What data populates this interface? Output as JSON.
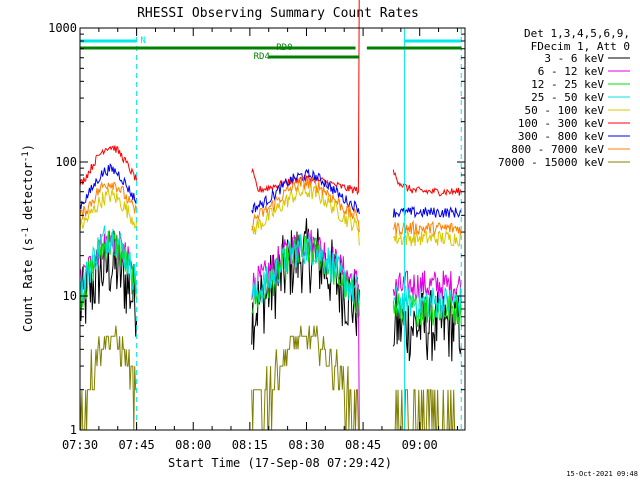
{
  "chart_data": {
    "type": "line",
    "title": "RHESSI Observing Summary Count Rates",
    "xlabel": "Start Time (17-Sep-08 07:29:42)",
    "ylabel_parts": {
      "pre": "Count Rate (s",
      "sup1": "-1",
      "mid": " detector",
      "sup2": "-1",
      "post": ")"
    },
    "x_range_min": [
      0,
      102
    ],
    "x_ticks": [
      {
        "t": 0,
        "label": "07:30"
      },
      {
        "t": 15,
        "label": "07:45"
      },
      {
        "t": 30,
        "label": "08:00"
      },
      {
        "t": 45,
        "label": "08:15"
      },
      {
        "t": 60,
        "label": "08:30"
      },
      {
        "t": 75,
        "label": "08:45"
      },
      {
        "t": 90,
        "label": "09:00"
      }
    ],
    "y_scale": "log",
    "ylim": [
      1,
      1000
    ],
    "y_ticks": [
      {
        "v": 1,
        "label": "1"
      },
      {
        "v": 10,
        "label": "10"
      },
      {
        "v": 100,
        "label": "100"
      },
      {
        "v": 1000,
        "label": "1000"
      }
    ],
    "legend": {
      "header": [
        "Det 1,3,4,5,6,9,",
        "FDecim 1, Att 0"
      ],
      "position": "right"
    },
    "series": [
      {
        "name": "3 - 6 keV",
        "color": "#000000",
        "peak1": 17,
        "trough": 7,
        "peak2": 20,
        "tail": 6,
        "step": 6,
        "noise": 0.28
      },
      {
        "name": "6 - 12 keV",
        "color": "#e000e0",
        "peak1": 26,
        "trough": 11,
        "peak2": 25,
        "tail": 12,
        "step": 11,
        "noise": 0.12
      },
      {
        "name": "12 - 25 keV",
        "color": "#00dd00",
        "peak1": 25,
        "trough": 8,
        "peak2": 22,
        "tail": 8,
        "step": 8,
        "noise": 0.13
      },
      {
        "name": "25 - 50 keV",
        "color": "#00e0e0",
        "peak1": 28,
        "trough": 9,
        "peak2": 23,
        "tail": 9,
        "step": 9,
        "noise": 0.13
      },
      {
        "name": "50 - 100 keV",
        "color": "#d8c800",
        "peak1": 56,
        "trough": 30,
        "peak2": 60,
        "tail": 27,
        "step": 27,
        "noise": 0.06
      },
      {
        "name": "100 - 300 keV",
        "color": "#ff0000",
        "peak1": 130,
        "trough": 60,
        "peak2": 75,
        "tail": 60,
        "step": 85,
        "noise": 0.03
      },
      {
        "name": "300 - 800 keV",
        "color": "#0000ee",
        "peak1": 88,
        "trough": 42,
        "peak2": 80,
        "tail": 42,
        "step": 42,
        "noise": 0.04
      },
      {
        "name": "800 - 7000 keV",
        "color": "#ff8000",
        "peak1": 70,
        "trough": 35,
        "peak2": 70,
        "tail": 32,
        "step": 32,
        "noise": 0.05
      },
      {
        "name": "7000 - 15000 keV",
        "color": "#808000",
        "peak1": 5,
        "trough": 1,
        "peak2": 5,
        "tail": 1,
        "step": 1,
        "noise": 0.0
      }
    ],
    "gaps_min": [
      [
        15,
        45.5
      ],
      [
        74,
        83
      ]
    ],
    "flag_bars": [
      {
        "label": "N",
        "color": "#00e8e8",
        "ranges_min": [
          [
            0,
            15
          ],
          [
            86,
            101
          ]
        ],
        "label_at_min": 16,
        "level": 1
      },
      {
        "label": "RD0",
        "color": "#008000",
        "ranges_min": [
          [
            0,
            73
          ],
          [
            76,
            101
          ]
        ],
        "label_at_min": 52,
        "level": 2
      },
      {
        "label": "RD4",
        "color": "#008000",
        "ranges_min": [
          [
            50,
            74
          ]
        ],
        "label_at_min": 46,
        "level": 3
      }
    ],
    "vlines_min": [
      {
        "t": 0,
        "color": "#00e8e8",
        "dash": false
      },
      {
        "t": 15,
        "color": "#00e8e8",
        "dash": true
      },
      {
        "t": 86,
        "color": "#00e8e8",
        "dash": false
      },
      {
        "t": 101,
        "color": "#00e8e8",
        "dash": true
      }
    ]
  },
  "footer_timestamp": "15-Oct-2021 09:48"
}
